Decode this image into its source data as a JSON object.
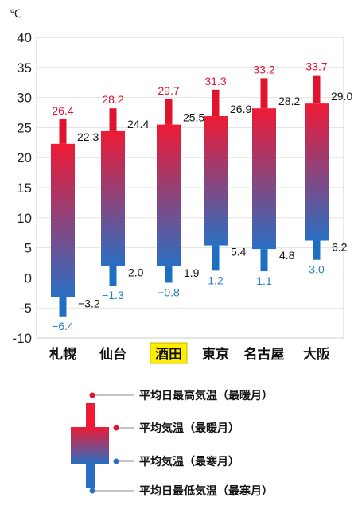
{
  "chart_data": {
    "type": "candlestick",
    "unit": "℃",
    "ylim": [
      -10,
      40
    ],
    "yticks": [
      40,
      35,
      30,
      25,
      20,
      15,
      10,
      5,
      0,
      -5,
      -10
    ],
    "highlight_city": "酒田",
    "categories": [
      "札幌",
      "仙台",
      "酒田",
      "東京",
      "名古屋",
      "大阪"
    ],
    "series": [
      {
        "name": "平均日最高気温（最暖月）",
        "values": [
          26.4,
          28.2,
          29.7,
          31.3,
          33.2,
          33.7
        ]
      },
      {
        "name": "平均気温（最暖月）",
        "values": [
          22.3,
          24.4,
          25.5,
          26.9,
          28.2,
          29.0
        ]
      },
      {
        "name": "平均気温（最寒月）",
        "values": [
          -3.2,
          2.0,
          1.9,
          5.4,
          4.8,
          6.2
        ]
      },
      {
        "name": "平均日最低気温（最寒月）",
        "values": [
          -6.4,
          -1.3,
          -0.8,
          1.2,
          1.1,
          3.0
        ]
      }
    ],
    "value_labels": {
      "max_warm": [
        "26.4",
        "28.2",
        "29.7",
        "31.3",
        "33.2",
        "33.7"
      ],
      "avg_warm": [
        "22.3",
        "24.4",
        "25.5",
        "26.9",
        "28.2",
        "29.0"
      ],
      "avg_cold": [
        "−3.2",
        "2.0",
        "1.9",
        "5.4",
        "4.8",
        "6.2"
      ],
      "min_cold": [
        "−6.4",
        "−1.3",
        "−0.8",
        "1.2",
        "1.1",
        "3.0"
      ]
    },
    "colors": {
      "red": "#e0132f",
      "blue": "#1e6fbf",
      "text_blue": "#2a7fc0",
      "highlight_bg": "#ffee00"
    }
  },
  "legend": {
    "max_warm": "平均日最高気温（最暖月）",
    "avg_warm": "平均気温（最暖月）",
    "avg_cold": "平均気温（最寒月）",
    "min_cold": "平均日最低気温（最寒月）"
  }
}
